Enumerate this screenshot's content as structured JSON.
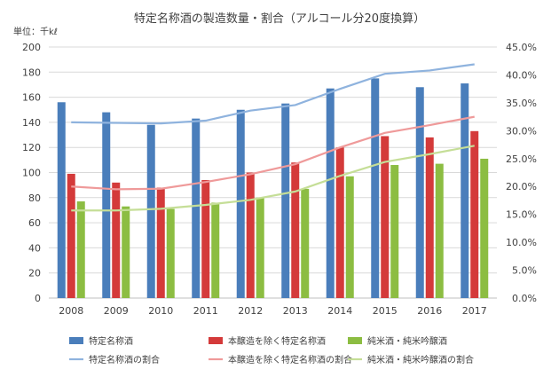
{
  "chart_data": {
    "type": "bar",
    "title": "特定名称酒の製造数量・割合（アルコール分20度換算）",
    "unit_label": "単位：千kℓ",
    "categories": [
      "2008",
      "2009",
      "2010",
      "2011",
      "2012",
      "2013",
      "2014",
      "2015",
      "2016",
      "2017"
    ],
    "y_left": {
      "min": 0,
      "max": 200,
      "step": 20,
      "ticks": [
        "0",
        "20",
        "40",
        "60",
        "80",
        "100",
        "120",
        "140",
        "160",
        "180",
        "200"
      ]
    },
    "y_right": {
      "min": 0,
      "max": 45,
      "step": 5,
      "ticks": [
        "0.0%",
        "5.0%",
        "10.0%",
        "15.0%",
        "20.0%",
        "25.0%",
        "30.0%",
        "35.0%",
        "40.0%",
        "45.0%"
      ]
    },
    "grid": true,
    "legend_position": "bottom",
    "bar_series": [
      {
        "name": "特定名称酒",
        "color": "#4a7ebb",
        "values": [
          156,
          148,
          138,
          143,
          150,
          155,
          167,
          175,
          168,
          171
        ]
      },
      {
        "name": "本醸造を除く特定名称酒",
        "color": "#d43a3a",
        "values": [
          99,
          92,
          88,
          94,
          100,
          108,
          120,
          129,
          128,
          133
        ]
      },
      {
        "name": "純米酒・純米吟醸酒",
        "color": "#8cbd42",
        "values": [
          77,
          73,
          71,
          76,
          80,
          87,
          97,
          106,
          107,
          111
        ]
      }
    ],
    "line_series": [
      {
        "name": "特定名称酒の割合",
        "color": "#8fb3de",
        "values": [
          31.5,
          31.4,
          31.3,
          31.8,
          33.6,
          34.6,
          37.5,
          40.2,
          40.8,
          41.9
        ]
      },
      {
        "name": "本醸造を除く特定名称酒の割合",
        "color": "#ef9a9a",
        "values": [
          20.0,
          19.5,
          19.6,
          20.8,
          22.2,
          24.0,
          27.0,
          29.6,
          31.0,
          32.5
        ]
      },
      {
        "name": "純米酒・純米吟醸酒の割合",
        "color": "#c5de97",
        "values": [
          15.7,
          15.7,
          16.0,
          16.7,
          17.6,
          19.1,
          21.9,
          24.4,
          25.8,
          27.3
        ]
      }
    ]
  }
}
